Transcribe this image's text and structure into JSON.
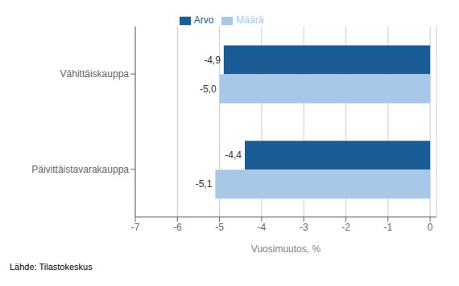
{
  "chart_data": {
    "type": "bar",
    "orientation": "horizontal",
    "categories": [
      "Päivittäistavarakauppa",
      "Vähittäiskauppa"
    ],
    "series": [
      {
        "name": "Arvo",
        "color": "#1A5C96",
        "values": [
          -4.4,
          -4.9
        ],
        "value_labels": [
          "-4,4",
          "-4,9"
        ]
      },
      {
        "name": "Määrä",
        "color": "#A8C8E8",
        "values": [
          -5.1,
          -5.0
        ],
        "value_labels": [
          "-5,1",
          "-5,0"
        ]
      }
    ],
    "xlabel": "Vuosimuutos, %",
    "xlim": [
      -7,
      0.15
    ],
    "xticks": [
      -7,
      -6,
      -5,
      -4,
      -3,
      -2,
      -1,
      0
    ],
    "grid": true,
    "legend": "top",
    "data_labels": true,
    "annotations": [
      "Lähde: Tilastokeskus"
    ]
  }
}
